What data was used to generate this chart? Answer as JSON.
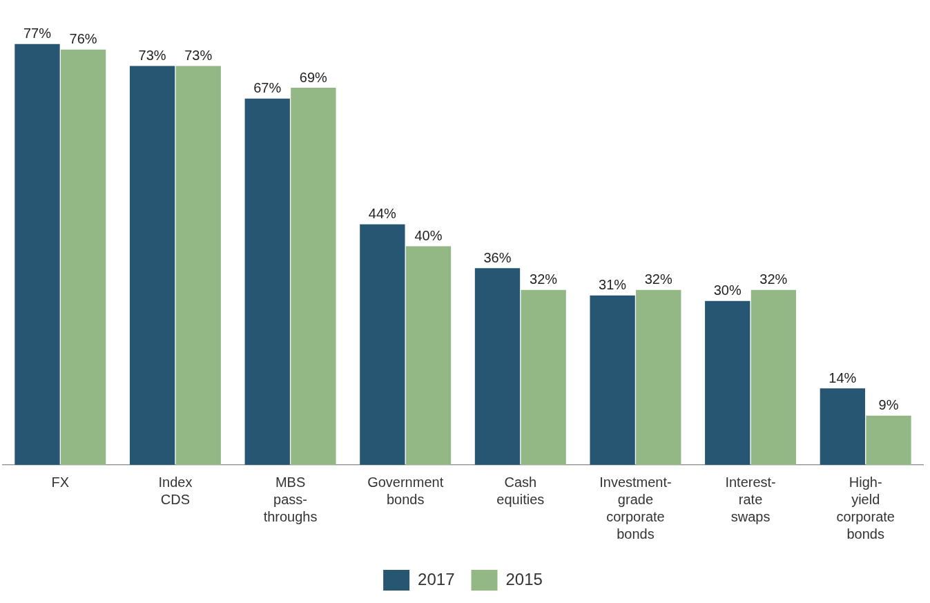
{
  "chart_data": {
    "type": "bar",
    "categories": [
      "FX",
      "Index CDS",
      "MBS pass-throughs",
      "Government bonds",
      "Cash equities",
      "Investment-grade corporate bonds",
      "Interest-rate swaps",
      "High-yield corporate bonds"
    ],
    "series": [
      {
        "name": "2017",
        "color": "#275673",
        "values": [
          77,
          73,
          67,
          44,
          36,
          31,
          30,
          14
        ],
        "value_labels": [
          "77%",
          "73%",
          "67%",
          "44%",
          "36%",
          "31%",
          "30%",
          "14%"
        ]
      },
      {
        "name": "2015",
        "color": "#93b886",
        "values": [
          76,
          73,
          69,
          40,
          32,
          32,
          32,
          9
        ],
        "value_labels": [
          "76%",
          "73%",
          "69%",
          "40%",
          "32%",
          "32%",
          "32%",
          "9%"
        ]
      }
    ],
    "tick_labels": "x",
    "grid": false,
    "legend": "bottom"
  }
}
